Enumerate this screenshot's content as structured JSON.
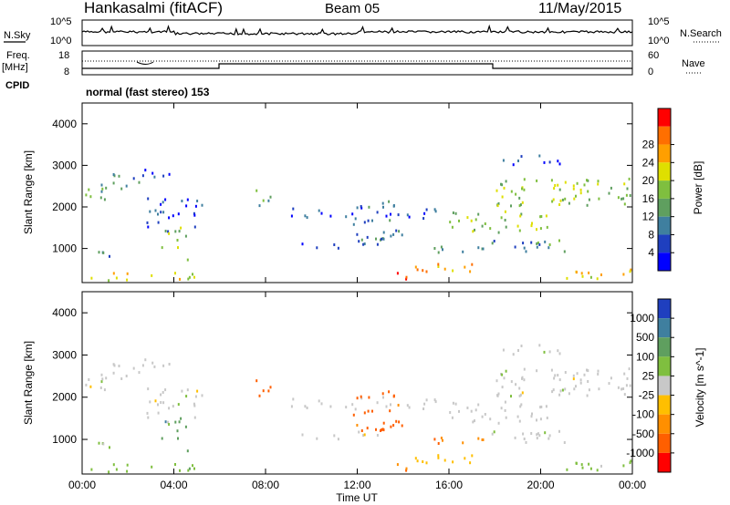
{
  "header": {
    "station": "Hankasalmi (fitACF)",
    "beam": "Beam 05",
    "date": "11/May/2015"
  },
  "left_labels": {
    "nsky": "N.Sky",
    "freq_line1": "Freq.",
    "freq_line2": "[MHz]",
    "cpid": "CPID"
  },
  "right_labels": {
    "nsearch": "N.Search",
    "nave": "Nave"
  },
  "cpid_text": "normal (fast stereo) 153",
  "colors": {
    "power_scale": [
      "#0000ff",
      "#1f3fbf",
      "#3f7f9f",
      "#5f9f5f",
      "#7fbf3f",
      "#dfdf00",
      "#ff9f00",
      "#ff6f00",
      "#ff0000"
    ],
    "velocity_scale": [
      "#1f3fbf",
      "#3f7f9f",
      "#5f9f5f",
      "#7fbf3f",
      "#c8c8c8",
      "#ffbf00",
      "#ff8f00",
      "#ff5f00",
      "#ff0000"
    ]
  },
  "chart_data": [
    {
      "type": "line",
      "name": "noise",
      "left_ticks": [
        "10^5",
        "10^0"
      ],
      "right_ticks": [
        "10^5",
        "10^0"
      ]
    },
    {
      "type": "line",
      "name": "frequency",
      "left_ticks": [
        "18",
        "8"
      ],
      "right_ticks": [
        "60",
        "0"
      ]
    },
    {
      "type": "heatmap",
      "name": "power",
      "xlabel": "",
      "ylabel": "Slant Range [km]",
      "x_ticks": [
        "00:00",
        "04:00",
        "08:00",
        "12:00",
        "16:00",
        "20:00",
        "00:00"
      ],
      "y_ticks": [
        1000,
        2000,
        3000,
        4000
      ],
      "xlim": [
        0,
        24
      ],
      "ylim": [
        180,
        4500
      ],
      "colorbar_label": "Power [dB]",
      "colorbar_ticks": [
        "4",
        "8",
        "12",
        "16",
        "20",
        "24",
        "28"
      ]
    },
    {
      "type": "heatmap",
      "name": "velocity",
      "xlabel": "Time UT",
      "ylabel": "Slant Range [km]",
      "x_ticks": [
        "00:00",
        "04:00",
        "08:00",
        "12:00",
        "16:00",
        "20:00",
        "00:00"
      ],
      "y_ticks": [
        1000,
        2000,
        3000,
        4000
      ],
      "xlim": [
        0,
        24
      ],
      "ylim": [
        180,
        4500
      ],
      "colorbar_label": "Velocity [m s^-1]",
      "colorbar_ticks": [
        "1000",
        "500",
        "100",
        "25",
        "-25",
        "-100",
        "-500",
        "-1000"
      ]
    }
  ]
}
